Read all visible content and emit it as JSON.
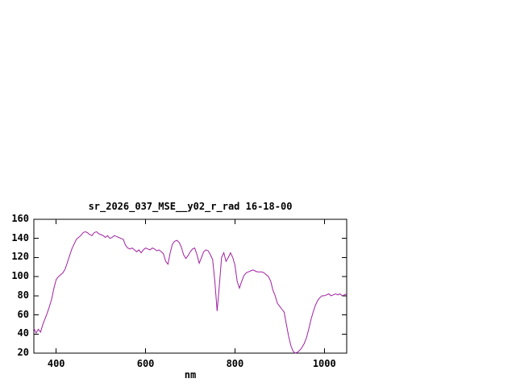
{
  "window": {
    "background_color": "#ffffff"
  },
  "chart_data": {
    "type": "line",
    "title": "sr_2026_037_MSE__y02_r_rad 16-18-00",
    "xlabel": "nm",
    "ylabel": "",
    "xlim": [
      350,
      1050
    ],
    "ylim": [
      20,
      160
    ],
    "xticks": [
      400,
      600,
      800,
      1000
    ],
    "yticks": [
      20,
      40,
      60,
      80,
      100,
      120,
      140,
      160
    ],
    "grid": false,
    "legend": "none",
    "line_color": "#a020a0",
    "axis_color": "#000000",
    "text_color": "#000000",
    "series": [
      {
        "name": "sr_2026_037_MSE__y02_r_rad 16-18-00",
        "points": [
          [
            350,
            46
          ],
          [
            355,
            41
          ],
          [
            360,
            45
          ],
          [
            365,
            42
          ],
          [
            370,
            50
          ],
          [
            375,
            56
          ],
          [
            380,
            62
          ],
          [
            385,
            69
          ],
          [
            390,
            77
          ],
          [
            395,
            88
          ],
          [
            400,
            97
          ],
          [
            405,
            100
          ],
          [
            410,
            102
          ],
          [
            415,
            104
          ],
          [
            420,
            108
          ],
          [
            425,
            115
          ],
          [
            430,
            122
          ],
          [
            435,
            129
          ],
          [
            440,
            134
          ],
          [
            445,
            139
          ],
          [
            450,
            141
          ],
          [
            455,
            143
          ],
          [
            460,
            146
          ],
          [
            465,
            147
          ],
          [
            470,
            146
          ],
          [
            475,
            144
          ],
          [
            480,
            143
          ],
          [
            485,
            146
          ],
          [
            490,
            147
          ],
          [
            495,
            145
          ],
          [
            500,
            144
          ],
          [
            505,
            143
          ],
          [
            510,
            141
          ],
          [
            515,
            143
          ],
          [
            520,
            140
          ],
          [
            525,
            141
          ],
          [
            530,
            143
          ],
          [
            535,
            142
          ],
          [
            540,
            141
          ],
          [
            545,
            140
          ],
          [
            550,
            139
          ],
          [
            555,
            133
          ],
          [
            560,
            130
          ],
          [
            565,
            129
          ],
          [
            570,
            130
          ],
          [
            575,
            128
          ],
          [
            580,
            126
          ],
          [
            585,
            128
          ],
          [
            590,
            125
          ],
          [
            595,
            128
          ],
          [
            600,
            130
          ],
          [
            605,
            129
          ],
          [
            610,
            128
          ],
          [
            615,
            130
          ],
          [
            620,
            129
          ],
          [
            625,
            127
          ],
          [
            630,
            128
          ],
          [
            635,
            126
          ],
          [
            640,
            124
          ],
          [
            645,
            116
          ],
          [
            650,
            113
          ],
          [
            655,
            125
          ],
          [
            660,
            134
          ],
          [
            665,
            137
          ],
          [
            670,
            138
          ],
          [
            675,
            136
          ],
          [
            680,
            131
          ],
          [
            685,
            123
          ],
          [
            690,
            119
          ],
          [
            695,
            122
          ],
          [
            700,
            126
          ],
          [
            705,
            129
          ],
          [
            710,
            130
          ],
          [
            715,
            123
          ],
          [
            720,
            114
          ],
          [
            725,
            120
          ],
          [
            730,
            126
          ],
          [
            735,
            128
          ],
          [
            740,
            127
          ],
          [
            745,
            123
          ],
          [
            750,
            118
          ],
          [
            755,
            95
          ],
          [
            760,
            64
          ],
          [
            765,
            90
          ],
          [
            770,
            120
          ],
          [
            775,
            125
          ],
          [
            780,
            116
          ],
          [
            785,
            120
          ],
          [
            790,
            125
          ],
          [
            795,
            120
          ],
          [
            800,
            112
          ],
          [
            805,
            95
          ],
          [
            810,
            88
          ],
          [
            815,
            95
          ],
          [
            820,
            101
          ],
          [
            825,
            104
          ],
          [
            830,
            105
          ],
          [
            835,
            106
          ],
          [
            840,
            107
          ],
          [
            845,
            106
          ],
          [
            850,
            105
          ],
          [
            855,
            105
          ],
          [
            860,
            105
          ],
          [
            865,
            104
          ],
          [
            870,
            102
          ],
          [
            875,
            100
          ],
          [
            880,
            95
          ],
          [
            885,
            86
          ],
          [
            890,
            80
          ],
          [
            895,
            72
          ],
          [
            900,
            69
          ],
          [
            905,
            66
          ],
          [
            910,
            63
          ],
          [
            915,
            50
          ],
          [
            920,
            38
          ],
          [
            925,
            28
          ],
          [
            930,
            22
          ],
          [
            935,
            20
          ],
          [
            940,
            21
          ],
          [
            945,
            23
          ],
          [
            950,
            26
          ],
          [
            955,
            30
          ],
          [
            960,
            36
          ],
          [
            965,
            45
          ],
          [
            970,
            55
          ],
          [
            975,
            63
          ],
          [
            980,
            70
          ],
          [
            985,
            75
          ],
          [
            990,
            78
          ],
          [
            995,
            80
          ],
          [
            1000,
            80
          ],
          [
            1005,
            81
          ],
          [
            1010,
            82
          ],
          [
            1015,
            80
          ],
          [
            1020,
            81
          ],
          [
            1025,
            82
          ],
          [
            1030,
            81
          ],
          [
            1035,
            82
          ],
          [
            1040,
            80
          ],
          [
            1045,
            81
          ],
          [
            1050,
            82
          ]
        ]
      }
    ]
  }
}
